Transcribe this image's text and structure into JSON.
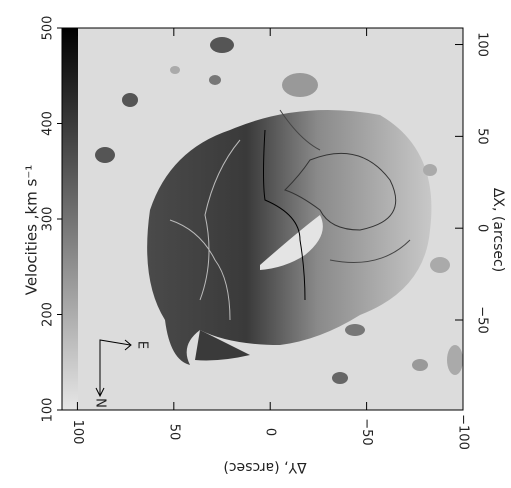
{
  "chart_data": {
    "type": "image",
    "colorbar": {
      "label": "Velocities ,km s⁻¹",
      "lim": [
        100,
        500
      ],
      "ticks": [
        100,
        200,
        300,
        400,
        500
      ]
    },
    "xlabel": "ΔY, (arcsec)",
    "xlim": [
      108,
      -100
    ],
    "xticks": [
      100,
      50,
      0,
      {
        "value": -50,
        "label": "−50"
      },
      {
        "value": -100,
        "label": "−100"
      }
    ],
    "ylabel": "ΔX, (arcsec)",
    "ylim": [
      -99,
      109
    ],
    "yticks": [
      {
        "value": -50,
        "label": "−50"
      },
      0,
      50,
      100
    ],
    "annotations": [
      "N",
      "E"
    ]
  }
}
